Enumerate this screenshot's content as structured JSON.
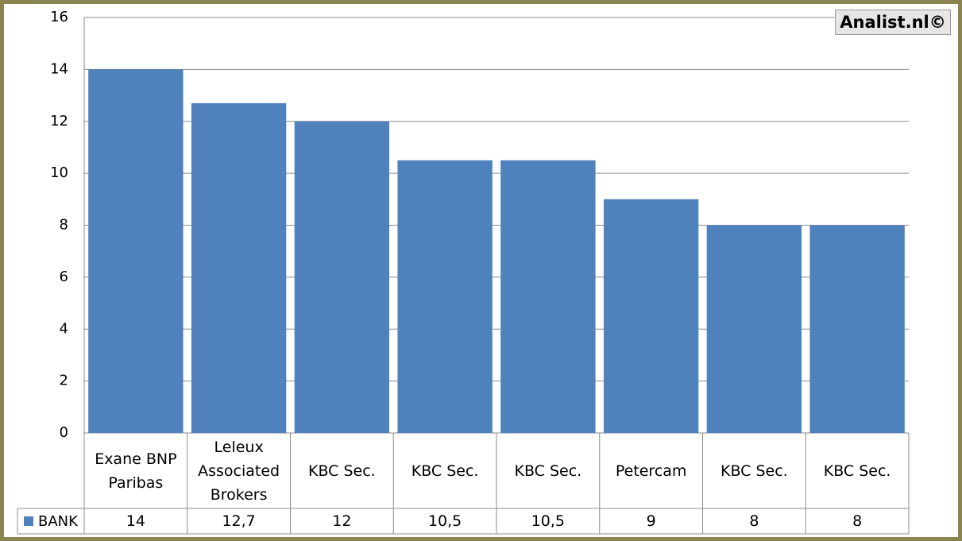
{
  "chart_data": {
    "type": "bar",
    "watermark": "Analist.nl©",
    "categories": [
      "Exane BNP Paribas",
      "Leleux Associated Brokers",
      "KBC Sec.",
      "KBC Sec.",
      "KBC Sec.",
      "Petercam",
      "KBC Sec.",
      "KBC Sec."
    ],
    "series": [
      {
        "name": "BANK",
        "color": "#4f81bd",
        "values": [
          14,
          12.7,
          12,
          10.5,
          10.5,
          9,
          8,
          8
        ],
        "value_labels": [
          "14",
          "12,7",
          "12",
          "10,5",
          "10,5",
          "9",
          "8",
          "8"
        ]
      }
    ],
    "ylim": [
      0,
      16
    ],
    "yticks": [
      0,
      2,
      4,
      6,
      8,
      10,
      12,
      14,
      16
    ],
    "grid": true
  }
}
